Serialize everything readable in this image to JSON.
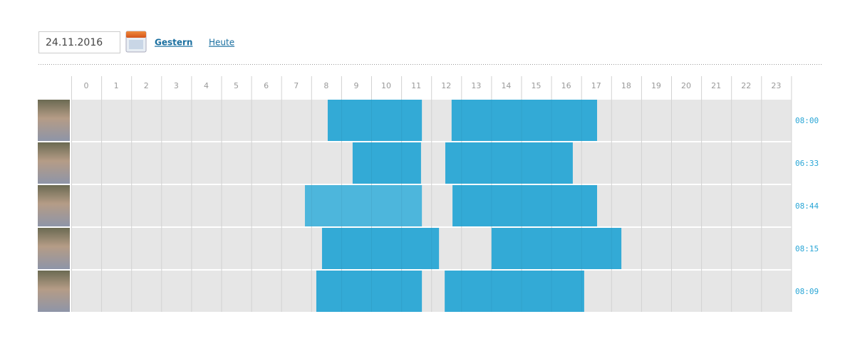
{
  "toolbar": {
    "date": "24.11.2016",
    "links": [
      "Gestern",
      "Heute"
    ]
  },
  "timeline": {
    "hours": [
      0,
      1,
      2,
      3,
      4,
      5,
      6,
      7,
      8,
      9,
      10,
      11,
      12,
      13,
      14,
      15,
      16,
      17,
      18,
      19,
      20,
      21,
      22,
      23
    ],
    "rows": [
      {
        "total": "08:00",
        "intervals": [
          {
            "start": 8.55,
            "end": 11.69,
            "color": "#33aad6"
          },
          {
            "start": 12.68,
            "end": 17.53,
            "color": "#33aad6"
          }
        ]
      },
      {
        "total": "06:33",
        "intervals": [
          {
            "start": 9.38,
            "end": 11.66,
            "color": "#33aad6"
          },
          {
            "start": 12.47,
            "end": 16.72,
            "color": "#33aad6"
          }
        ]
      },
      {
        "total": "08:44",
        "intervals": [
          {
            "start": 7.79,
            "end": 11.69,
            "color": "#4db6dc"
          },
          {
            "start": 12.71,
            "end": 17.53,
            "color": "#33aad6"
          }
        ]
      },
      {
        "total": "08:15",
        "intervals": [
          {
            "start": 8.36,
            "end": 12.26,
            "color": "#33aad6"
          },
          {
            "start": 14.01,
            "end": 18.34,
            "color": "#33aad6"
          }
        ]
      },
      {
        "total": "08:09",
        "intervals": [
          {
            "start": 8.17,
            "end": 11.69,
            "color": "#33aad6"
          },
          {
            "start": 12.45,
            "end": 17.1,
            "color": "#33aad6"
          }
        ]
      }
    ]
  }
}
